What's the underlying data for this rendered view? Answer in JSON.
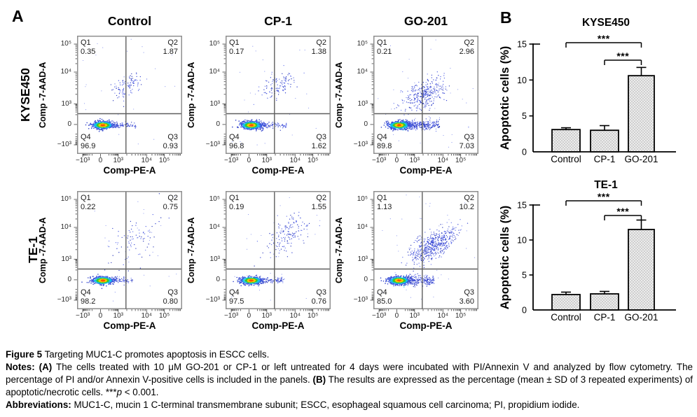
{
  "panel_a": {
    "label": "A",
    "row_labels": [
      "KYSE450",
      "TE-1"
    ],
    "col_titles": [
      "Control",
      "CP-1",
      "GO-201"
    ],
    "x_axis_label": "Comp-PE-A",
    "y_axis_label": "Comp -7-AAD-A",
    "x_ticks": [
      "−10³",
      "0",
      "10³",
      "10⁴",
      "10⁵"
    ],
    "y_ticks": [
      "10⁵",
      "10⁴",
      "10³",
      "0",
      "−10³"
    ],
    "quadrant_names": [
      "Q1",
      "Q2",
      "Q3",
      "Q4"
    ],
    "plots": [
      {
        "cell_line": "KYSE450",
        "treatment": "Control",
        "q1": "0.35",
        "q2": "1.87",
        "q3": "0.93",
        "q4": "96.9",
        "scatter": {
          "seed": 101,
          "core_n": 620,
          "tail_n": 130,
          "tail_x2": 0.56,
          "tail_sy": 0.012,
          "cloud_n": 105,
          "cloud_x": 0.47,
          "cloud_y": 0.43,
          "cloud_sx": 0.075,
          "cloud_sy": 0.05,
          "cloud_slope": 0.3,
          "sparse_n": 26
        }
      },
      {
        "cell_line": "KYSE450",
        "treatment": "CP-1",
        "q1": "0.17",
        "q2": "1.38",
        "q3": "1.62",
        "q4": "96.8",
        "scatter": {
          "seed": 202,
          "core_n": 620,
          "tail_n": 150,
          "tail_x2": 0.58,
          "tail_sy": 0.013,
          "cloud_n": 115,
          "cloud_x": 0.5,
          "cloud_y": 0.42,
          "cloud_sx": 0.08,
          "cloud_sy": 0.05,
          "cloud_slope": 0.3,
          "sparse_n": 26
        }
      },
      {
        "cell_line": "KYSE450",
        "treatment": "GO-201",
        "q1": "0.21",
        "q2": "2.96",
        "q3": "7.03",
        "q4": "89.8",
        "scatter": {
          "seed": 303,
          "core_n": 660,
          "tail_n": 380,
          "tail_x2": 0.63,
          "tail_sy": 0.02,
          "cloud_n": 330,
          "cloud_x": 0.48,
          "cloud_y": 0.5,
          "cloud_sx": 0.105,
          "cloud_sy": 0.06,
          "cloud_slope": 0.35,
          "sparse_n": 44
        }
      },
      {
        "cell_line": "TE-1",
        "treatment": "Control",
        "q1": "0.22",
        "q2": "0.75",
        "q3": "0.80",
        "q4": "98.2",
        "scatter": {
          "seed": 404,
          "core_n": 600,
          "tail_n": 115,
          "tail_x2": 0.53,
          "tail_sy": 0.012,
          "cloud_n": 88,
          "cloud_x": 0.55,
          "cloud_y": 0.4,
          "cloud_sx": 0.125,
          "cloud_sy": 0.09,
          "cloud_slope": 0.45,
          "sparse_n": 26
        }
      },
      {
        "cell_line": "TE-1",
        "treatment": "CP-1",
        "q1": "0.19",
        "q2": "1.55",
        "q3": "0.76",
        "q4": "97.5",
        "scatter": {
          "seed": 505,
          "core_n": 600,
          "tail_n": 140,
          "tail_x2": 0.56,
          "tail_sy": 0.012,
          "cloud_n": 150,
          "cloud_x": 0.57,
          "cloud_y": 0.37,
          "cloud_sx": 0.11,
          "cloud_sy": 0.08,
          "cloud_slope": 0.45,
          "sparse_n": 30
        }
      },
      {
        "cell_line": "TE-1",
        "treatment": "GO-201",
        "q1": "1.13",
        "q2": "10.2",
        "q3": "3.60",
        "q4": "85.0",
        "scatter": {
          "seed": 606,
          "core_n": 640,
          "tail_n": 330,
          "tail_x2": 0.58,
          "tail_sy": 0.021,
          "cloud_n": 520,
          "cloud_x": 0.56,
          "cloud_y": 0.47,
          "cloud_sx": 0.105,
          "cloud_sy": 0.055,
          "cloud_slope": 0.45,
          "sparse_n": 40
        }
      }
    ]
  },
  "panel_b": {
    "label": "B"
  },
  "chart_data": [
    {
      "type": "bar",
      "title": "KYSE450",
      "categories": [
        "Control",
        "CP-1",
        "GO-201"
      ],
      "values": [
        3.1,
        3.0,
        10.6
      ],
      "errors": [
        0.25,
        0.65,
        1.15
      ],
      "ylabel": "Apoptotic cells (%)",
      "xlabel": "",
      "ylim": [
        0,
        15
      ],
      "yticks": [
        0,
        5,
        10,
        15
      ],
      "grid": false,
      "legend": "none",
      "significance": [
        {
          "from": "Control",
          "to": "GO-201",
          "label": "***"
        },
        {
          "from": "CP-1",
          "to": "GO-201",
          "label": "***"
        }
      ]
    },
    {
      "type": "bar",
      "title": "TE-1",
      "categories": [
        "Control",
        "CP-1",
        "GO-201"
      ],
      "values": [
        2.2,
        2.3,
        11.5
      ],
      "errors": [
        0.35,
        0.35,
        1.35
      ],
      "ylabel": "Apoptotic cells (%)",
      "xlabel": "",
      "ylim": [
        0,
        15
      ],
      "yticks": [
        0,
        5,
        10,
        15
      ],
      "grid": false,
      "legend": "none",
      "significance": [
        {
          "from": "Control",
          "to": "GO-201",
          "label": "***"
        },
        {
          "from": "CP-1",
          "to": "GO-201",
          "label": "***"
        }
      ]
    }
  ],
  "colors": {
    "bar_fill_base": "#ececec",
    "bar_fill_dot": "#cfcfcf",
    "bar_stroke": "#000000",
    "frame": "#8f8f8f",
    "quadrant_line": "#5e5e5e",
    "density_hot": "#ff5200",
    "density_warm": "#ffc400",
    "density_mid": "#39cc25",
    "density_cool": "#15bfe8",
    "density_cold": "#3b56dd"
  },
  "caption": {
    "fig_label": "Figure 5",
    "fig_text": "Targeting MUC1-C promotes apoptosis in ESCC cells.",
    "notes_label": "Notes:",
    "notes_a_marker": "(A)",
    "notes_a_text": "The cells treated with 10 μM GO-201 or CP-1 or left untreated for 4 days were incubated with PI/Annexin V and analyzed by flow cytometry. The percentage of PI and/or Annexin V-positive cells is included in the panels.",
    "notes_b_marker": "(B)",
    "notes_b_text": "The results are expressed as the percentage (mean ± SD of 3 repeated experiments) of apoptotic/necrotic cells.",
    "sig_stars": "***",
    "sig_p": "p",
    "sig_rest": " < 0.001.",
    "abbr_label": "Abbreviations:",
    "abbr_text": "MUC1-C, mucin 1 C-terminal transmembrane subunit; ESCC, esophageal squamous cell carcinoma; PI, propidium iodide."
  }
}
